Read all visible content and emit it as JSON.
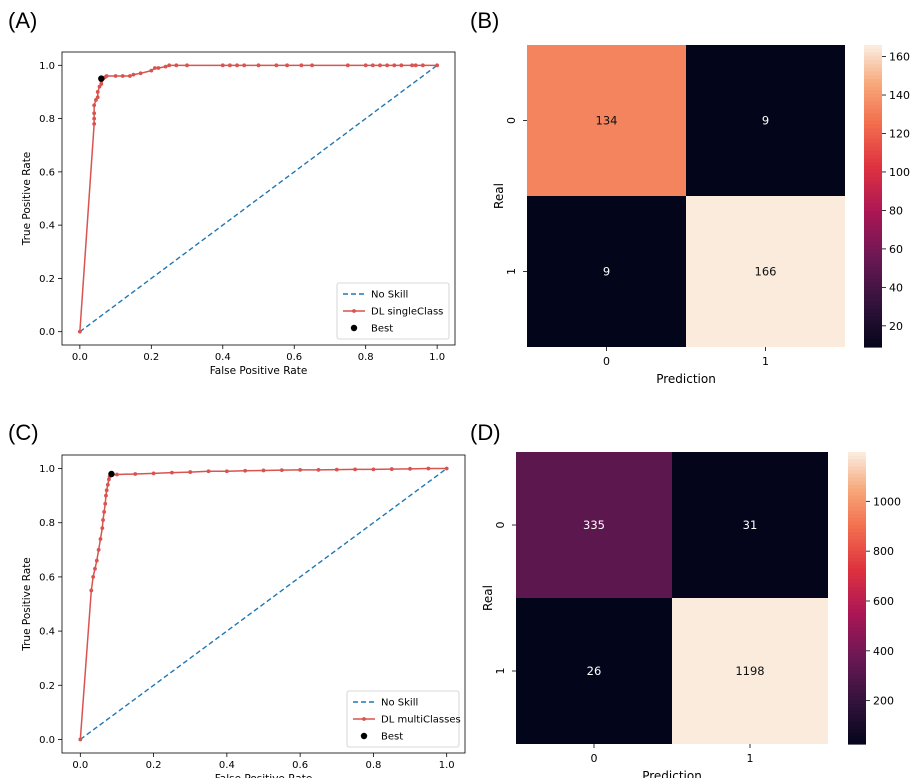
{
  "panels": {
    "a": "(A)",
    "b": "(B)",
    "c": "(C)",
    "d": "(D)"
  },
  "colors": {
    "roc_curve": "#d9534f",
    "no_skill": "#1f77b4",
    "best_point": "#000000"
  },
  "chart_data": [
    {
      "type": "line",
      "panel": "(A)",
      "xlabel": "False Positive Rate",
      "ylabel": "True Positive Rate",
      "xlim": [
        -0.05,
        1.05
      ],
      "ylim": [
        -0.05,
        1.05
      ],
      "xticks": [
        "0.0",
        "0.2",
        "0.4",
        "0.6",
        "0.8",
        "1.0"
      ],
      "yticks": [
        "0.0",
        "0.2",
        "0.4",
        "0.6",
        "0.8",
        "1.0"
      ],
      "legend_position": "lower-right",
      "series": [
        {
          "name": "No Skill",
          "style": "dashed",
          "x": [
            0,
            1
          ],
          "y": [
            0,
            1
          ]
        },
        {
          "name": "DL singleClass",
          "style": "line-markers",
          "x": [
            0.0,
            0.04,
            0.04,
            0.04,
            0.04,
            0.045,
            0.05,
            0.05,
            0.055,
            0.06,
            0.06,
            0.065,
            0.07,
            0.075,
            0.1,
            0.12,
            0.14,
            0.15,
            0.17,
            0.2,
            0.21,
            0.22,
            0.24,
            0.25,
            0.27,
            0.3,
            0.4,
            0.42,
            0.44,
            0.46,
            0.5,
            0.55,
            0.58,
            0.62,
            0.65,
            0.75,
            0.8,
            0.82,
            0.84,
            0.86,
            0.88,
            0.9,
            0.93,
            0.94,
            0.96,
            1.0
          ],
          "y": [
            0.0,
            0.78,
            0.8,
            0.82,
            0.85,
            0.87,
            0.88,
            0.9,
            0.92,
            0.93,
            0.94,
            0.95,
            0.955,
            0.96,
            0.96,
            0.96,
            0.96,
            0.965,
            0.97,
            0.98,
            0.99,
            0.99,
            0.995,
            1.0,
            1.0,
            1.0,
            1.0,
            1.0,
            1.0,
            1.0,
            1.0,
            1.0,
            1.0,
            1.0,
            1.0,
            1.0,
            1.0,
            1.0,
            1.0,
            1.0,
            1.0,
            1.0,
            1.0,
            1.0,
            1.0,
            1.0
          ]
        },
        {
          "name": "Best",
          "style": "marker",
          "x": [
            0.06
          ],
          "y": [
            0.95
          ]
        }
      ]
    },
    {
      "type": "heatmap",
      "panel": "(B)",
      "xlabel": "Prediction",
      "ylabel": "Real",
      "x_categories": [
        "0",
        "1"
      ],
      "y_categories": [
        "0",
        "1"
      ],
      "values": [
        [
          134,
          9
        ],
        [
          9,
          166
        ]
      ],
      "colorbar_range": [
        9,
        166
      ],
      "colorbar_ticks": [
        "20",
        "40",
        "60",
        "80",
        "100",
        "120",
        "140",
        "160"
      ]
    },
    {
      "type": "line",
      "panel": "(C)",
      "xlabel": "False Positive Rate",
      "ylabel": "True Positive Rate",
      "xlim": [
        -0.05,
        1.05
      ],
      "ylim": [
        -0.05,
        1.05
      ],
      "xticks": [
        "0.0",
        "0.2",
        "0.4",
        "0.6",
        "0.8",
        "1.0"
      ],
      "yticks": [
        "0.0",
        "0.2",
        "0.4",
        "0.6",
        "0.8",
        "1.0"
      ],
      "legend_position": "lower-right",
      "series": [
        {
          "name": "No Skill",
          "style": "dashed",
          "x": [
            0,
            1
          ],
          "y": [
            0,
            1
          ]
        },
        {
          "name": "DL multiClasses",
          "style": "line-markers",
          "x": [
            0.0,
            0.03,
            0.035,
            0.04,
            0.045,
            0.05,
            0.055,
            0.06,
            0.062,
            0.065,
            0.068,
            0.07,
            0.072,
            0.075,
            0.078,
            0.08,
            0.085,
            0.1,
            0.15,
            0.2,
            0.25,
            0.3,
            0.35,
            0.4,
            0.45,
            0.5,
            0.55,
            0.6,
            0.65,
            0.7,
            0.75,
            0.8,
            0.85,
            0.9,
            0.95,
            1.0
          ],
          "y": [
            0.0,
            0.55,
            0.6,
            0.63,
            0.66,
            0.7,
            0.74,
            0.78,
            0.81,
            0.84,
            0.87,
            0.9,
            0.92,
            0.94,
            0.96,
            0.97,
            0.975,
            0.978,
            0.98,
            0.982,
            0.985,
            0.987,
            0.99,
            0.99,
            0.992,
            0.993,
            0.994,
            0.995,
            0.995,
            0.996,
            0.997,
            0.997,
            0.998,
            0.999,
            1.0,
            1.0
          ]
        },
        {
          "name": "Best",
          "style": "marker",
          "x": [
            0.085
          ],
          "y": [
            0.98
          ]
        }
      ]
    },
    {
      "type": "heatmap",
      "panel": "(D)",
      "xlabel": "Prediction",
      "ylabel": "Real",
      "x_categories": [
        "0",
        "1"
      ],
      "y_categories": [
        "0",
        "1"
      ],
      "values": [
        [
          335,
          31
        ],
        [
          26,
          1198
        ]
      ],
      "colorbar_range": [
        26,
        1198
      ],
      "colorbar_ticks": [
        "200",
        "400",
        "600",
        "800",
        "1000"
      ]
    }
  ]
}
